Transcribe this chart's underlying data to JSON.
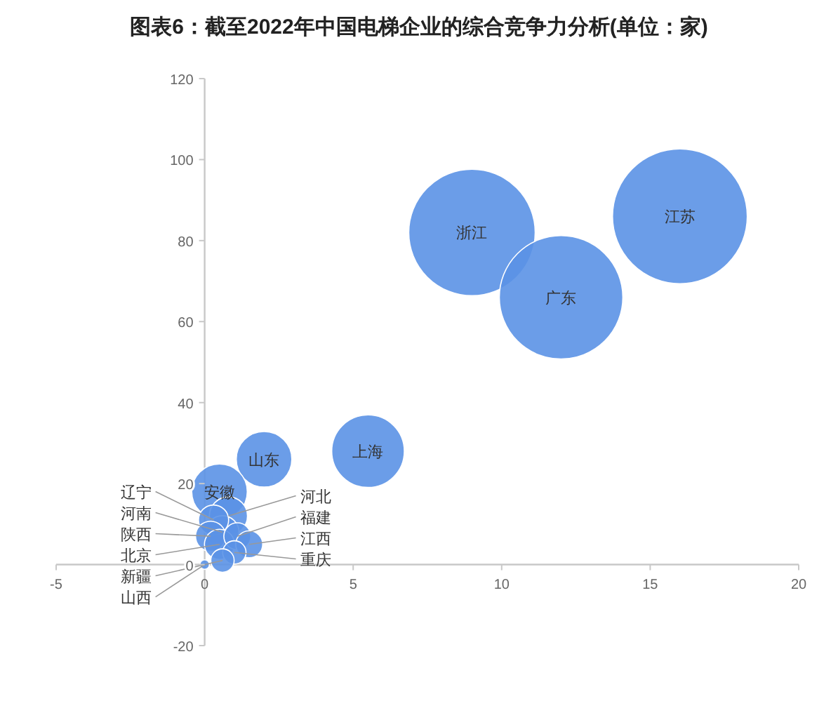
{
  "chart_data": {
    "type": "bubble",
    "title": "图表6：截至2022年中国电梯企业的综合竞争力分析(单位：家)",
    "color": "#5b92e5",
    "series": [
      {
        "name": "江苏",
        "x": [
          16
        ],
        "values": [
          86
        ],
        "sizes": [
          1
        ]
      },
      {
        "name": "浙江",
        "x": [
          9
        ],
        "values": [
          82
        ],
        "sizes": [
          0.88
        ]
      },
      {
        "name": "广东",
        "x": [
          12
        ],
        "values": [
          66
        ],
        "sizes": [
          0.84
        ]
      },
      {
        "name": "上海",
        "x": [
          5.5
        ],
        "values": [
          28
        ],
        "sizes": [
          0.29
        ]
      },
      {
        "name": "山东",
        "x": [
          2
        ],
        "values": [
          26
        ],
        "sizes": [
          0.17
        ]
      },
      {
        "name": "安徽",
        "x": [
          0.5
        ],
        "values": [
          18
        ],
        "sizes": [
          0.17
        ]
      },
      {
        "name": "河北",
        "x": [
          0.8
        ],
        "values": [
          12
        ],
        "sizes": [
          0.08
        ]
      },
      {
        "name": "辽宁",
        "x": [
          0.3
        ],
        "values": [
          11
        ],
        "sizes": [
          0.05
        ]
      },
      {
        "name": "河南",
        "x": [
          0.6
        ],
        "values": [
          8
        ],
        "sizes": [
          0.06
        ]
      },
      {
        "name": "陕西",
        "x": [
          0.2
        ],
        "values": [
          7
        ],
        "sizes": [
          0.05
        ]
      },
      {
        "name": "北京",
        "x": [
          0.5
        ],
        "values": [
          5
        ],
        "sizes": [
          0.05
        ]
      },
      {
        "name": "福建",
        "x": [
          1.1
        ],
        "values": [
          7
        ],
        "sizes": [
          0.04
        ]
      },
      {
        "name": "江西",
        "x": [
          1.5
        ],
        "values": [
          5
        ],
        "sizes": [
          0.04
        ]
      },
      {
        "name": "重庆",
        "x": [
          1
        ],
        "values": [
          3
        ],
        "sizes": [
          0.03
        ]
      },
      {
        "name": "新疆",
        "x": [
          0.6
        ],
        "values": [
          1
        ],
        "sizes": [
          0.03
        ]
      },
      {
        "name": "山西",
        "x": [
          0
        ],
        "values": [
          0
        ],
        "sizes": [
          0.005
        ]
      }
    ],
    "xlim": [
      -5,
      20
    ],
    "ylim": [
      -20,
      120
    ],
    "xticks": [
      -5,
      0,
      5,
      10,
      15,
      20
    ],
    "yticks": [
      -20,
      0,
      20,
      40,
      60,
      80,
      100,
      120
    ]
  }
}
